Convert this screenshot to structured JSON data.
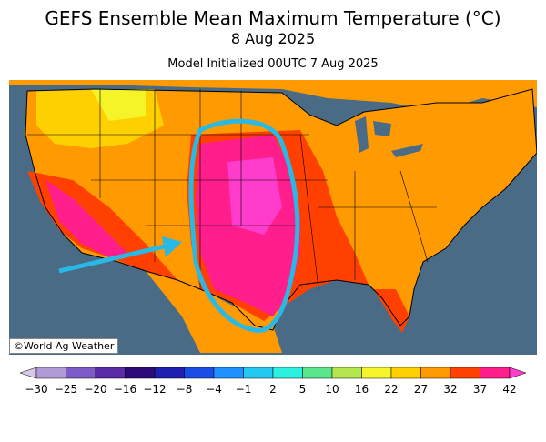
{
  "title": "GEFS Ensemble Mean Maximum Temperature (°C)",
  "valid_date": "8 Aug 2025",
  "init": "Model Initialized 00UTC 7 Aug 2025",
  "credit": "©World Ag Weather",
  "colors": {
    "ocean": "#4a6b85",
    "land_outside": "#ffffff",
    "outline": "#000000",
    "annotation": "#29b9e6"
  },
  "colorbar": {
    "labels": [
      "-30",
      "-25",
      "-20",
      "-16",
      "-12",
      "-8",
      "-4",
      "-1",
      "2",
      "5",
      "10",
      "16",
      "22",
      "27",
      "32",
      "37",
      "42"
    ],
    "colors": [
      "#d8c8e8",
      "#b09bd6",
      "#7e5cc8",
      "#5a2ba6",
      "#2c0a7a",
      "#1f1fb0",
      "#1a4de6",
      "#1e90ff",
      "#25c8f0",
      "#2cf0e0",
      "#5ae68c",
      "#b4e650",
      "#f4f428",
      "#ffd000",
      "#ff9a00",
      "#ff4000",
      "#ff1e8c",
      "#ff3ccc"
    ]
  },
  "annotations": [
    {
      "type": "ellipse",
      "label": "heat-area-outline"
    },
    {
      "type": "arrow",
      "label": "pointing-arrow"
    }
  ]
}
